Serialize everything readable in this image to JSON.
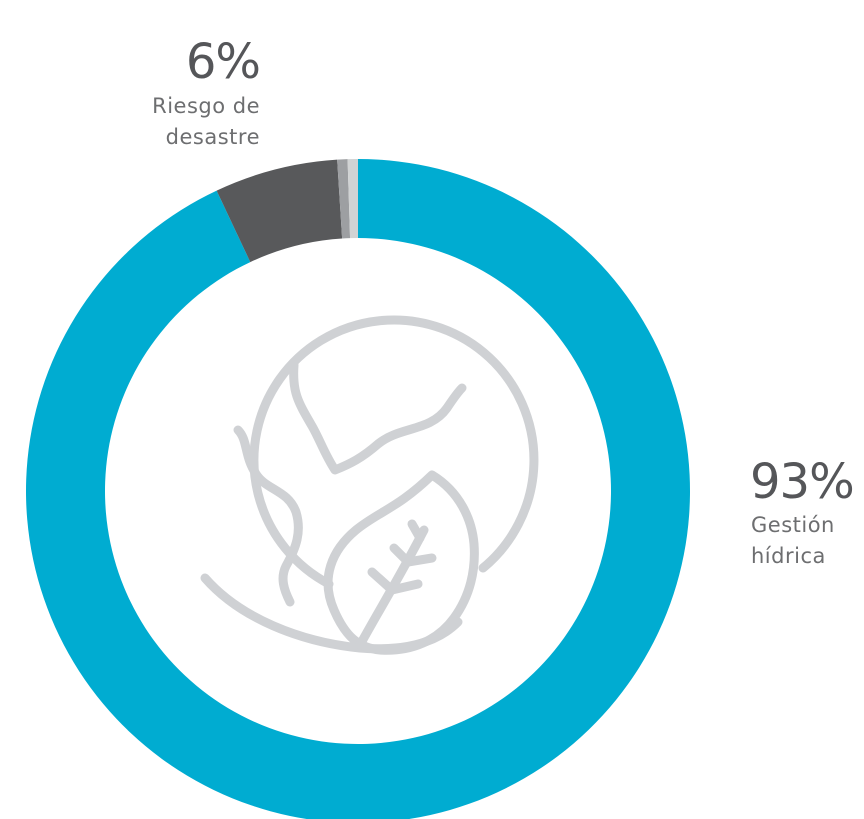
{
  "chart_data": {
    "type": "pie",
    "donut": true,
    "slices": [
      {
        "label": "Gestión hídrica",
        "value": 93,
        "display_value": "93%",
        "line1": "Gestión",
        "line2": "hídrica",
        "color": "#00acd1"
      },
      {
        "label": "Riesgo de desastre",
        "value": 6,
        "display_value": "6%",
        "line1": "Riesgo de",
        "line2": "desastre",
        "color": "#58595b"
      },
      {
        "label": "",
        "value": 0.5,
        "color": "#9d9fa2"
      },
      {
        "label": "",
        "value": 0.5,
        "color": "#d1d3d4"
      }
    ],
    "legend": "none"
  },
  "icon": "globe-leaf-icon",
  "icon_color": "#cfd1d4",
  "background": "#ffffff"
}
